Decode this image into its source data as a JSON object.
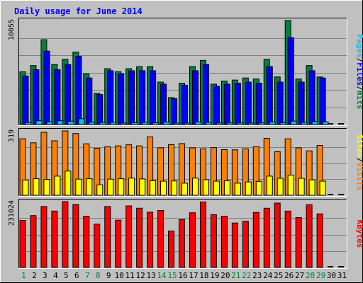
{
  "chart_data": {
    "type": "bar",
    "title": "Daily usage for June 2014",
    "categories": [
      "1",
      "2",
      "3",
      "4",
      "5",
      "6",
      "7",
      "8",
      "9",
      "10",
      "11",
      "12",
      "13",
      "14",
      "15",
      "16",
      "17",
      "18",
      "19",
      "20",
      "21",
      "22",
      "23",
      "24",
      "25",
      "26",
      "27",
      "28",
      "29",
      "30",
      "31"
    ],
    "weekend_days": [
      "1",
      "7",
      "8",
      "14",
      "15",
      "21",
      "22",
      "28",
      "29"
    ],
    "panels": [
      {
        "id": "hits-files-pages",
        "ymax_label": "10055",
        "ymax": 10055,
        "ylabel_parts": [
          "Pages",
          "/",
          "Files",
          "/",
          "Hits"
        ],
        "series": [
          {
            "name": "Hits",
            "color": "#008040",
            "values": [
              5100,
              5700,
              8200,
              5800,
              6300,
              7000,
              4900,
              3000,
              5400,
              5100,
              5400,
              5600,
              5600,
              4100,
              2600,
              4000,
              5600,
              6200,
              3900,
              4200,
              4300,
              4500,
              4400,
              6300,
              4600,
              10055,
              4400,
              5700,
              4600,
              0,
              0
            ]
          },
          {
            "name": "Files",
            "color": "#0000ff",
            "values": [
              4700,
              5300,
              7100,
              5300,
              5800,
              6600,
              4500,
              2900,
              5200,
              4900,
              5200,
              5200,
              5200,
              3900,
              2500,
              3800,
              5200,
              5800,
              3700,
              3900,
              4000,
              4100,
              4000,
              5600,
              4100,
              8400,
              4100,
              5200,
              4500,
              0,
              0
            ]
          },
          {
            "name": "Pages",
            "color": "#00c0ff",
            "values": [
              190,
              360,
              260,
              360,
              320,
              560,
              230,
              190,
              210,
              140,
              170,
              210,
              170,
              230,
              110,
              130,
              260,
              200,
              150,
              160,
              150,
              140,
              160,
              250,
              180,
              330,
              200,
              290,
              260,
              0,
              0
            ]
          }
        ]
      },
      {
        "id": "visits-sites",
        "ymax_label": "319",
        "ymax": 319,
        "ylabel_parts": [
          "Sites",
          "/",
          "Visits"
        ],
        "series": [
          {
            "name": "Visits",
            "color": "#ff8000",
            "values": [
              280,
              260,
              312,
              270,
              319,
              306,
              255,
              233,
              240,
              245,
              250,
              245,
              289,
              235,
              251,
              256,
              235,
              230,
              236,
              226,
              225,
              230,
              240,
              282,
              216,
              280,
              235,
              220,
              247,
              0,
              0
            ]
          },
          {
            "name": "Sites",
            "color": "#ffff00",
            "values": [
              75,
              82,
              78,
              95,
              120,
              80,
              82,
              52,
              80,
              82,
              85,
              81,
              72,
              70,
              71,
              60,
              85,
              77,
              70,
              72,
              60,
              66,
              69,
              95,
              84,
              100,
              84,
              76,
              70,
              0,
              0
            ]
          }
        ]
      },
      {
        "id": "kbytes",
        "ymax_label": "231024",
        "ymax": 231024,
        "ylabel_parts": [
          "KBytes"
        ],
        "series": [
          {
            "name": "KBytes",
            "color": "#ff0000",
            "values": [
              165000,
              182000,
              214000,
              198000,
              231024,
              221000,
              180000,
              152000,
              214000,
              166000,
              216000,
              208000,
              194000,
              200000,
              128000,
              168000,
              192000,
              230000,
              185000,
              180000,
              156000,
              162000,
              193000,
              208000,
              226000,
              198000,
              175000,
              220000,
              188000,
              0,
              0
            ]
          }
        ]
      }
    ]
  }
}
